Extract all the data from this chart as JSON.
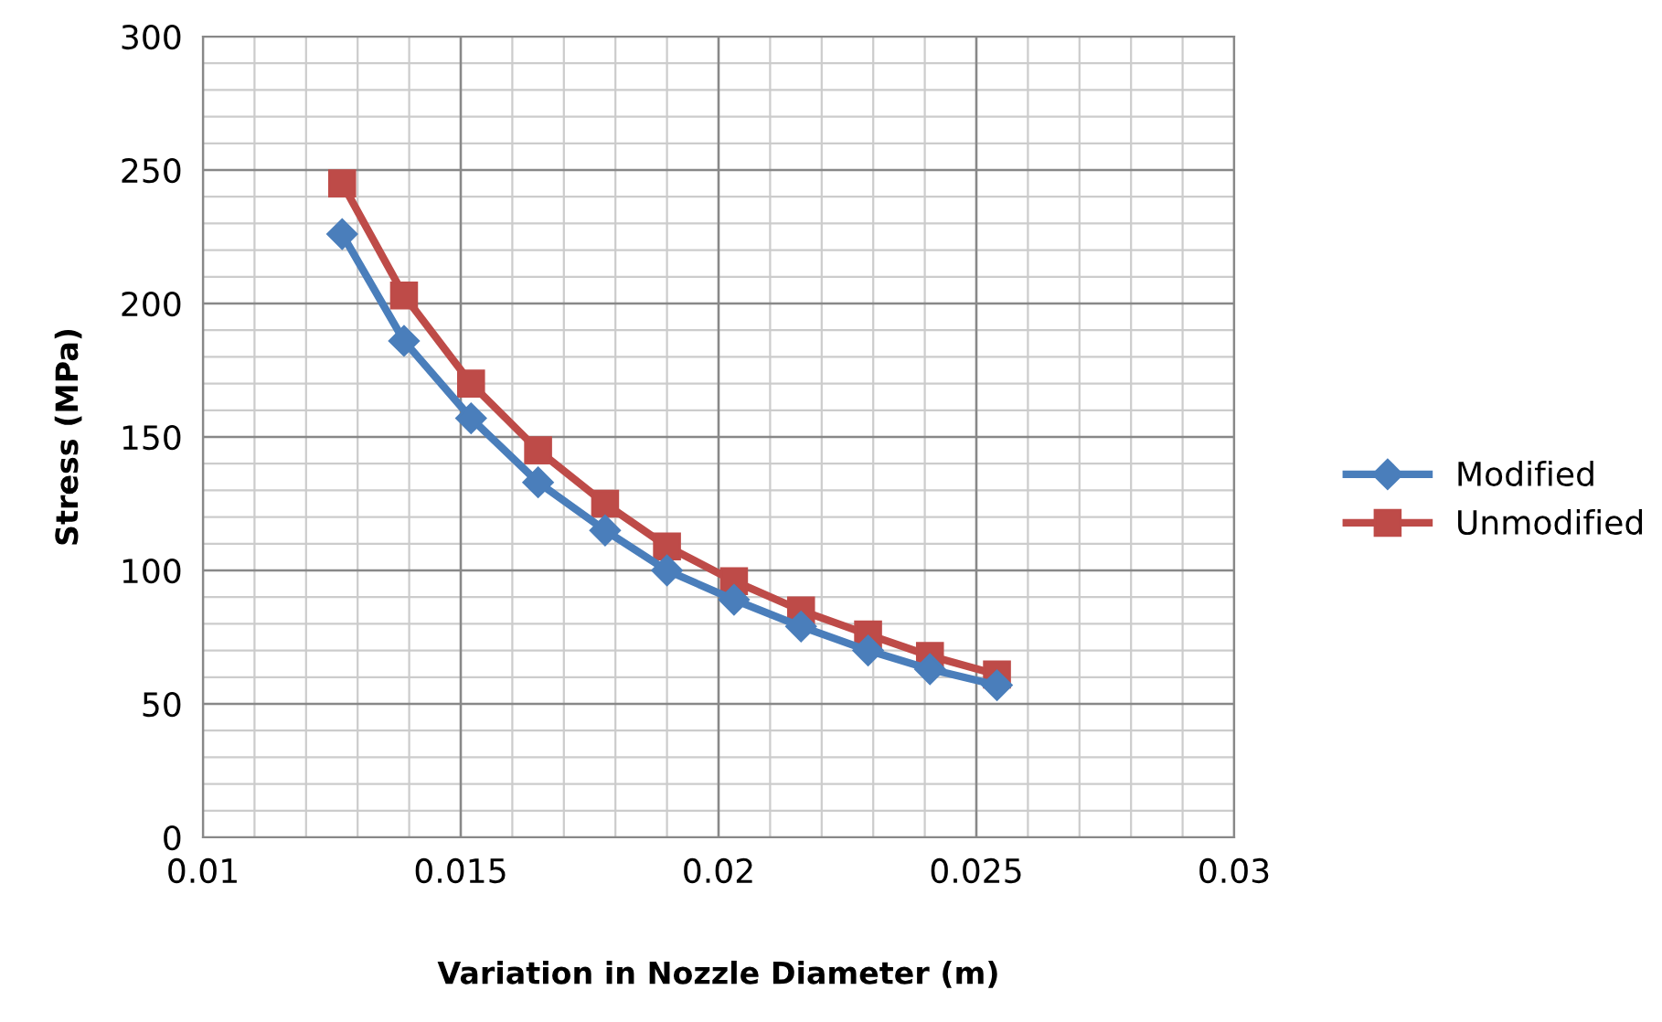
{
  "chart_data": {
    "type": "line",
    "xlabel": "Variation in Nozzle Diameter (m)",
    "ylabel": "Stress (MPa)",
    "x": [
      0.0127,
      0.0139,
      0.0152,
      0.0165,
      0.0178,
      0.019,
      0.0203,
      0.0216,
      0.0229,
      0.0241,
      0.0254
    ],
    "series": [
      {
        "name": "Modified",
        "color": "#4a7ebb",
        "marker": "diamond",
        "values": [
          226,
          186,
          157,
          133,
          115,
          100,
          89,
          79,
          70,
          63,
          57
        ]
      },
      {
        "name": "Unmodified",
        "color": "#be4b48",
        "marker": "square",
        "values": [
          245,
          203,
          170,
          145,
          125,
          109,
          96,
          85,
          76,
          68,
          61
        ]
      }
    ],
    "xlim": [
      0.01,
      0.03
    ],
    "xticks": [
      0.01,
      0.015,
      0.02,
      0.025,
      0.03
    ],
    "ylim": [
      0,
      300
    ],
    "yticks": [
      0,
      50,
      100,
      150,
      200,
      250,
      300
    ],
    "grid": true,
    "legend": "right",
    "line_style": "solid"
  }
}
